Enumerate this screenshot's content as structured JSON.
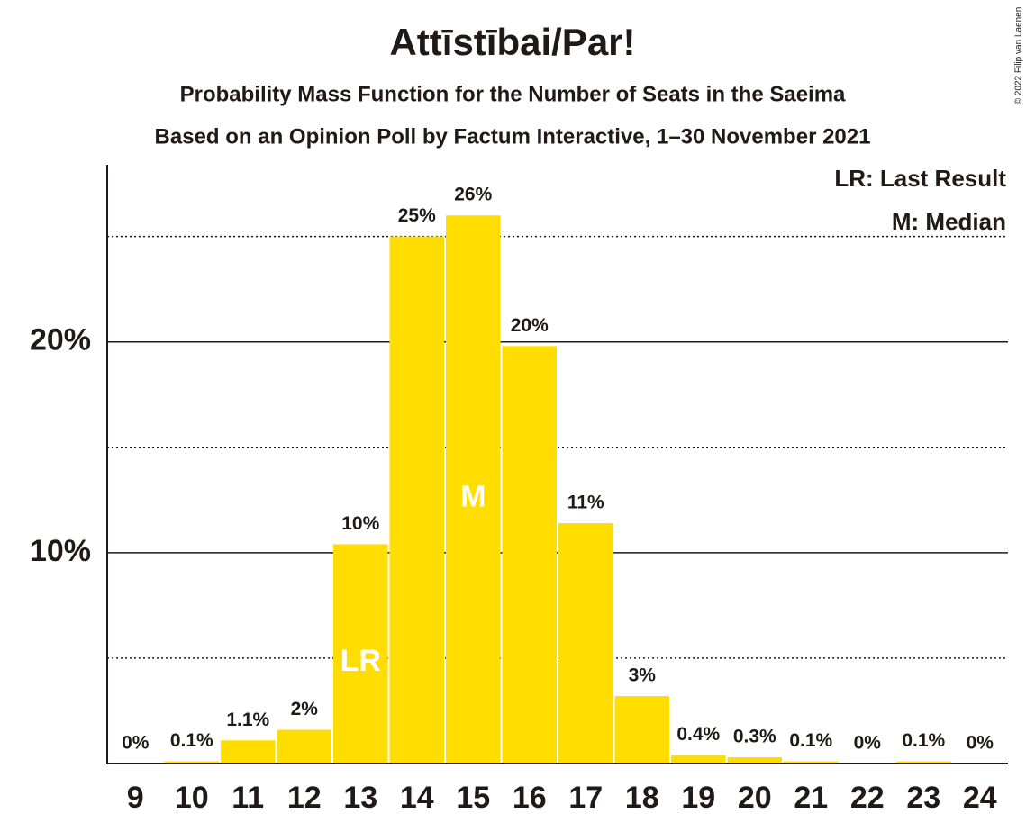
{
  "chart_data": {
    "type": "bar",
    "title": "Attīstībai/Par!",
    "subtitle": "Probability Mass Function for the Number of Seats in the Saeima",
    "subtitle2": "Based on an Opinion Poll by Factum Interactive, 1–30 November 2021",
    "copyright": "© 2022 Filip van Laenen",
    "categories": [
      "9",
      "10",
      "11",
      "12",
      "13",
      "14",
      "15",
      "16",
      "17",
      "18",
      "19",
      "20",
      "21",
      "22",
      "23",
      "24"
    ],
    "values": [
      0,
      0.1,
      1.1,
      1.6,
      10.4,
      25.0,
      26.0,
      19.8,
      11.4,
      3.2,
      0.4,
      0.3,
      0.1,
      0,
      0.1,
      0
    ],
    "value_labels": [
      "0%",
      "0.1%",
      "1.1%",
      "2%",
      "10%",
      "25%",
      "26%",
      "20%",
      "11%",
      "3%",
      "0.4%",
      "0.3%",
      "0.1%",
      "0%",
      "0.1%",
      "0%"
    ],
    "color": "#ffdd00",
    "ylim": [
      0,
      28.4
    ],
    "yticks": [
      {
        "value": 10,
        "label": "10%"
      },
      {
        "value": 20,
        "label": "20%"
      }
    ],
    "minor_yticks": [
      5,
      15,
      25
    ],
    "grid": true,
    "annotations": [
      {
        "text": "LR",
        "category": "13"
      },
      {
        "text": "M",
        "category": "15"
      }
    ],
    "legend": [
      "LR: Last Result",
      "M: Median"
    ]
  }
}
